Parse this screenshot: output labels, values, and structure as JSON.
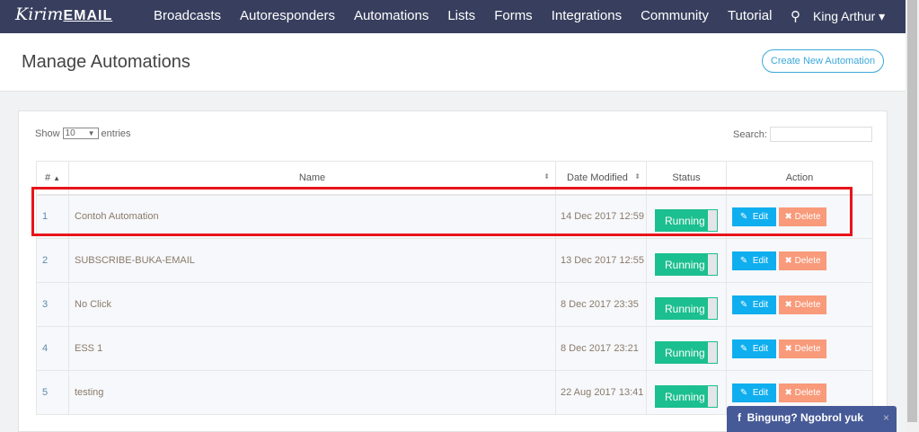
{
  "nav": {
    "logo": "Kirim",
    "logo_suffix": "EMAIL",
    "items": [
      "Broadcasts",
      "Autoresponders",
      "Automations",
      "Lists",
      "Forms",
      "Integrations",
      "Community",
      "Tutorial"
    ],
    "user": "King Arthur ▾"
  },
  "page": {
    "title": "Manage Automations",
    "create_button": "Create New Automation"
  },
  "table_controls": {
    "show": "Show",
    "entries_value": "10",
    "entries": "entries",
    "search_label": "Search:"
  },
  "columns": [
    "#",
    "Name",
    "Date Modified",
    "Status",
    "Action"
  ],
  "rows": [
    {
      "id": "1",
      "name": "Contoh Automation",
      "date": "14 Dec 2017 12:59",
      "status": "Running"
    },
    {
      "id": "2",
      "name": "SUBSCRIBE-BUKA-EMAIL",
      "date": "13 Dec 2017 12:55",
      "status": "Running"
    },
    {
      "id": "3",
      "name": "No Click",
      "date": "8 Dec 2017 23:35",
      "status": "Running"
    },
    {
      "id": "4",
      "name": "ESS 1",
      "date": "8 Dec 2017 23:21",
      "status": "Running"
    },
    {
      "id": "5",
      "name": "testing",
      "date": "22 Aug 2017 13:41",
      "status": "Running"
    }
  ],
  "actions": {
    "edit": "Edit",
    "delete": "Delete"
  },
  "chat": {
    "label": "Bingung? Ngobrol yuk",
    "close": "×"
  },
  "colors": {
    "nav": "#383f5e",
    "running": "#1cbf8f",
    "edit": "#0faeef",
    "delete": "#f99a7a",
    "highlight": "#e8141b"
  }
}
